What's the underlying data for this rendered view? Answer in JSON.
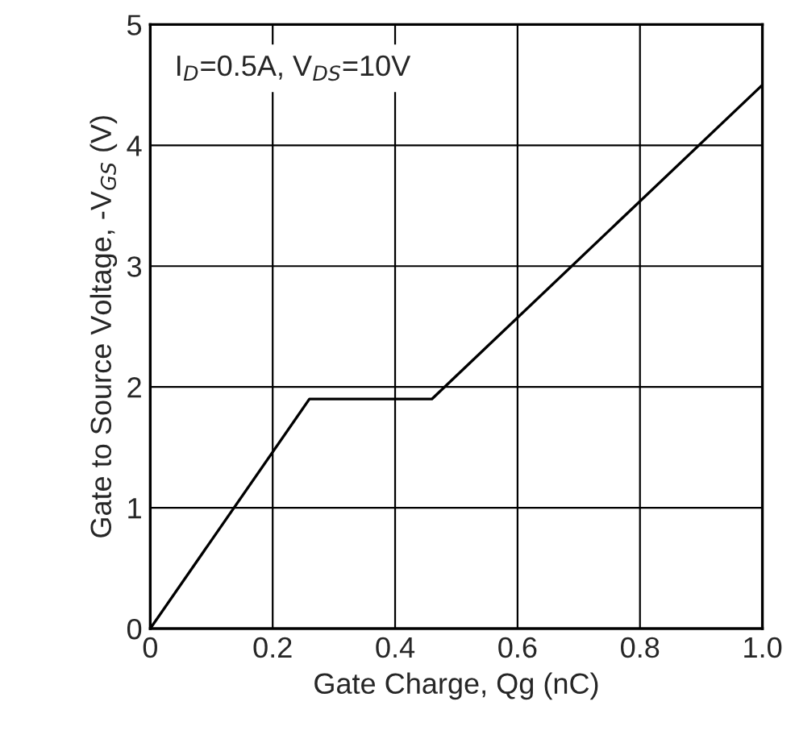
{
  "chart_data": {
    "type": "line",
    "xlabel": "Gate Charge, Qg (nC)",
    "ylabel": "Gate to Source Voltage, -V$_{GS}$ (V)",
    "annotations": [
      "I$_{D}$=0.5A, V$_{DS}$=10V"
    ],
    "series": [
      {
        "color": "#000000",
        "x": [
          0,
          0.26,
          0.46,
          1.0
        ],
        "values": [
          0,
          1.9,
          1.9,
          4.5
        ]
      }
    ],
    "xlim": [
      0,
      1.0
    ],
    "xticks": [
      0,
      0.2,
      0.4,
      0.6,
      0.8,
      {
        "value": 1,
        "label": "1.0"
      }
    ],
    "ylim": [
      0,
      5
    ],
    "yticks": [
      0,
      1,
      2,
      3,
      4,
      5
    ],
    "grid": true,
    "marker": "none",
    "line_style": "solid"
  }
}
